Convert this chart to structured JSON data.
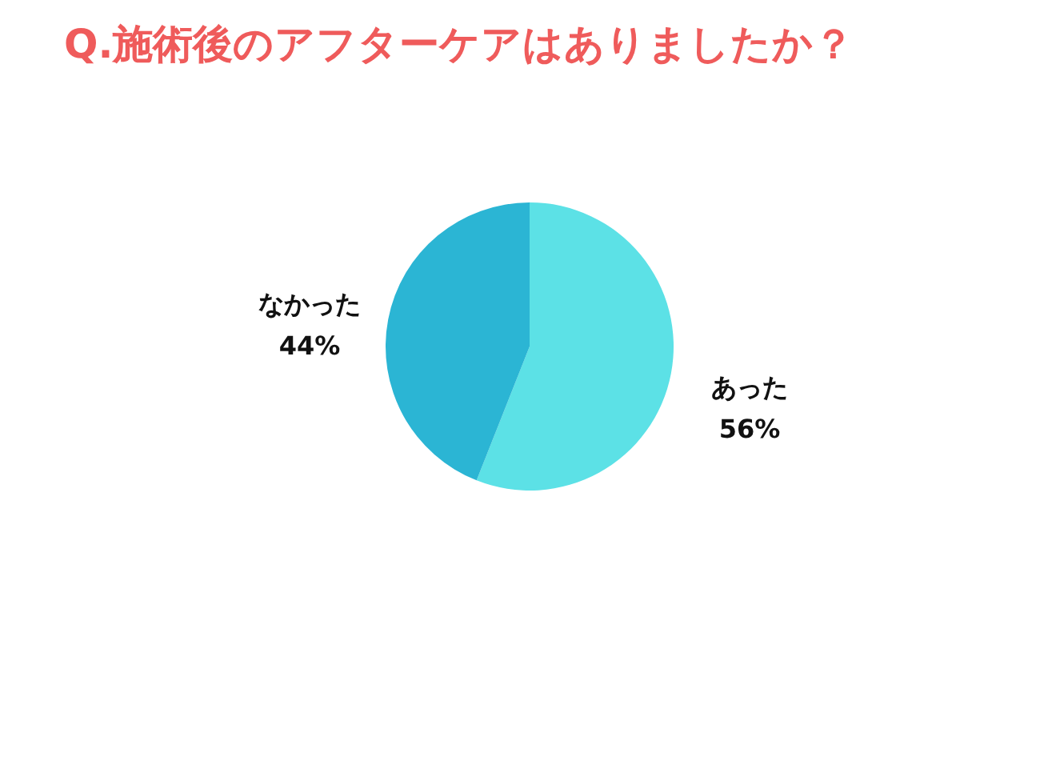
{
  "chart_data": {
    "type": "pie",
    "title": "Q.施術後のアフターケアはありましたか？",
    "categories": [
      "あった",
      "なかった"
    ],
    "values": [
      56,
      44
    ],
    "value_labels": [
      "56%",
      "44%"
    ],
    "colors": [
      "#5ce1e6",
      "#2bb5d4"
    ],
    "legend": false
  }
}
